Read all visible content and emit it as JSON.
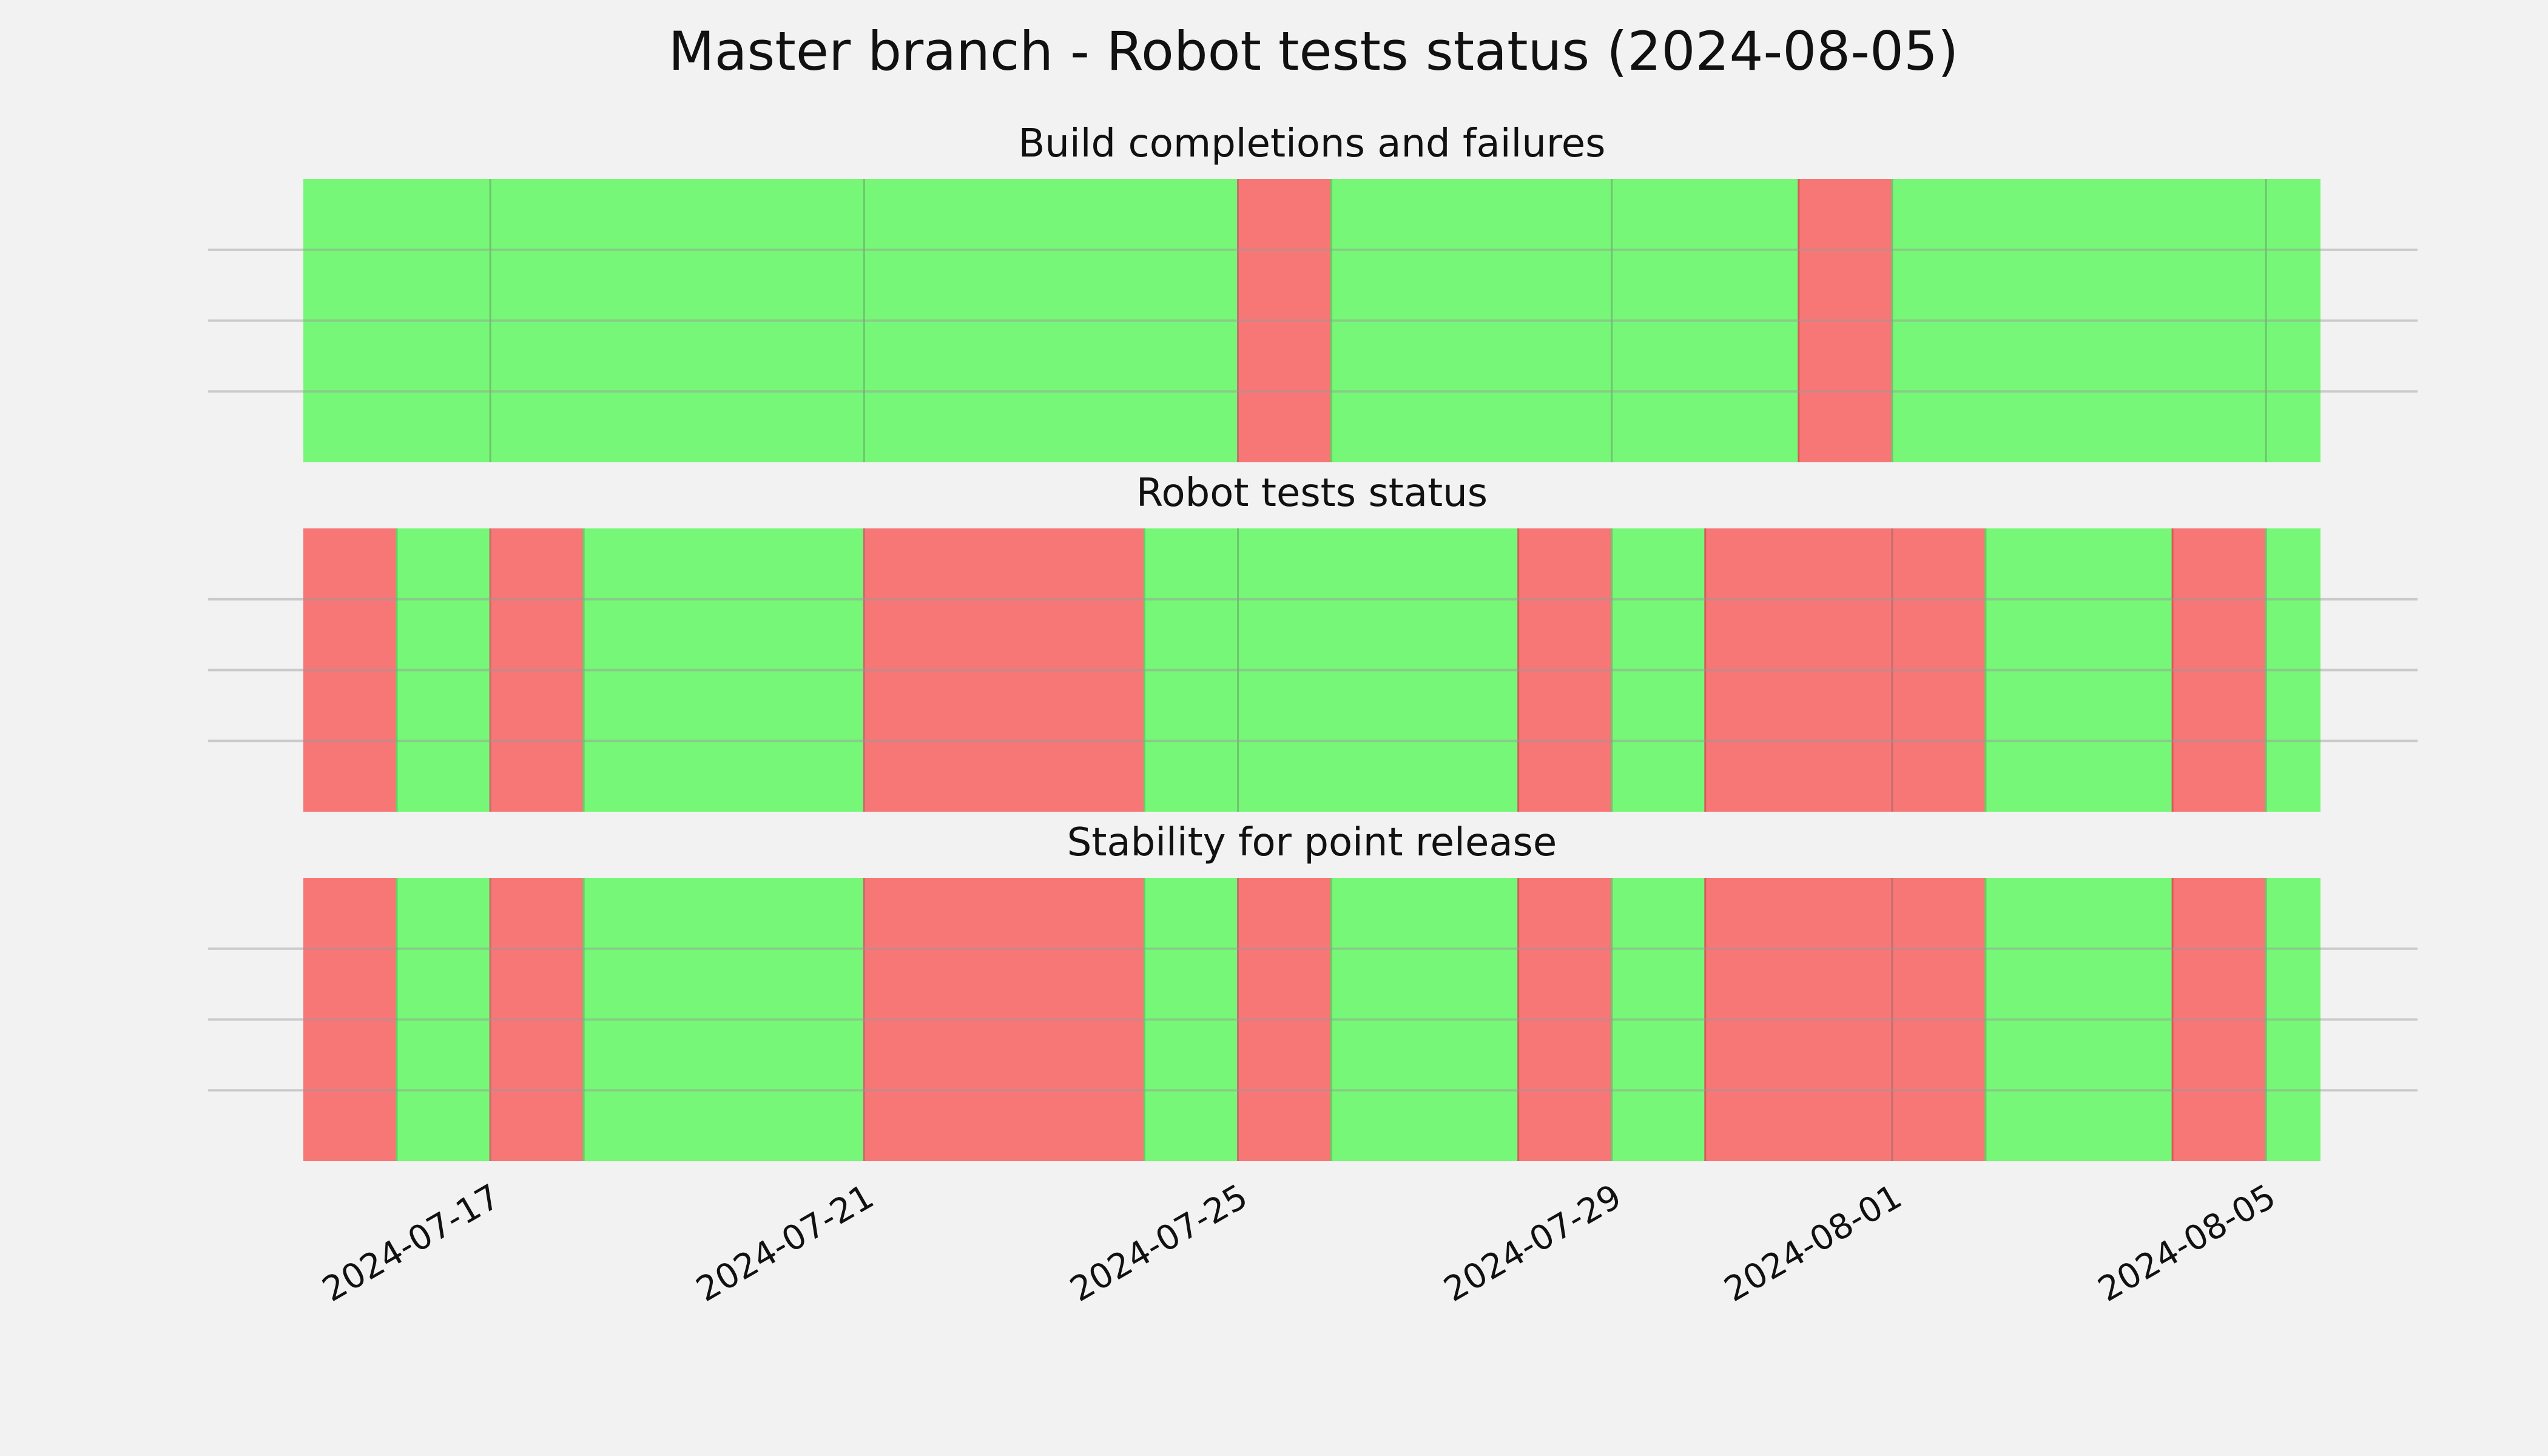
{
  "chart_data": {
    "type": "timeline",
    "title": "Master branch - Robot tests status (2024-08-05)",
    "x_range": [
      "2024-07-15T00:00",
      "2024-08-06T12:00"
    ],
    "x_ticks": [
      "2024-07-17",
      "2024-07-21",
      "2024-07-25",
      "2024-07-29",
      "2024-08-01",
      "2024-08-05"
    ],
    "colors": {
      "pass": "#77f777",
      "fail": "#f77777",
      "background": "#f2f2f2",
      "grid": "#c9c9c9"
    },
    "panels": [
      {
        "title": "Build completions and failures",
        "segments": [
          {
            "start": "2024-07-15T00:00",
            "end": "2024-07-17T00:00",
            "status": "pass"
          },
          {
            "start": "2024-07-17T00:00",
            "end": "2024-07-21T00:00",
            "status": "pass"
          },
          {
            "start": "2024-07-21T00:00",
            "end": "2024-07-25T00:00",
            "status": "pass"
          },
          {
            "start": "2024-07-25T00:00",
            "end": "2024-07-26T00:00",
            "status": "fail"
          },
          {
            "start": "2024-07-26T00:00",
            "end": "2024-07-29T00:00",
            "status": "pass"
          },
          {
            "start": "2024-07-29T00:00",
            "end": "2024-07-31T00:00",
            "status": "pass"
          },
          {
            "start": "2024-07-31T00:00",
            "end": "2024-08-01T00:00",
            "status": "fail"
          },
          {
            "start": "2024-08-01T00:00",
            "end": "2024-08-05T00:00",
            "status": "pass"
          },
          {
            "start": "2024-08-05T00:00",
            "end": "2024-08-05T14:00",
            "status": "pass"
          }
        ]
      },
      {
        "title": "Robot tests status",
        "segments": [
          {
            "start": "2024-07-15T00:00",
            "end": "2024-07-16T00:00",
            "status": "fail"
          },
          {
            "start": "2024-07-16T00:00",
            "end": "2024-07-17T00:00",
            "status": "pass"
          },
          {
            "start": "2024-07-17T00:00",
            "end": "2024-07-18T00:00",
            "status": "fail"
          },
          {
            "start": "2024-07-18T00:00",
            "end": "2024-07-21T00:00",
            "status": "pass"
          },
          {
            "start": "2024-07-21T00:00",
            "end": "2024-07-24T00:00",
            "status": "fail"
          },
          {
            "start": "2024-07-24T00:00",
            "end": "2024-07-25T00:00",
            "status": "pass"
          },
          {
            "start": "2024-07-25T00:00",
            "end": "2024-07-28T00:00",
            "status": "pass"
          },
          {
            "start": "2024-07-28T00:00",
            "end": "2024-07-29T00:00",
            "status": "fail"
          },
          {
            "start": "2024-07-29T00:00",
            "end": "2024-07-30T00:00",
            "status": "pass"
          },
          {
            "start": "2024-07-30T00:00",
            "end": "2024-08-01T00:00",
            "status": "fail"
          },
          {
            "start": "2024-08-01T00:00",
            "end": "2024-08-02T00:00",
            "status": "fail"
          },
          {
            "start": "2024-08-02T00:00",
            "end": "2024-08-04T00:00",
            "status": "pass"
          },
          {
            "start": "2024-08-04T00:00",
            "end": "2024-08-05T00:00",
            "status": "fail"
          },
          {
            "start": "2024-08-05T00:00",
            "end": "2024-08-05T14:00",
            "status": "pass"
          }
        ]
      },
      {
        "title": "Stability for point release",
        "segments": [
          {
            "start": "2024-07-15T00:00",
            "end": "2024-07-16T00:00",
            "status": "fail"
          },
          {
            "start": "2024-07-16T00:00",
            "end": "2024-07-17T00:00",
            "status": "pass"
          },
          {
            "start": "2024-07-17T00:00",
            "end": "2024-07-18T00:00",
            "status": "fail"
          },
          {
            "start": "2024-07-18T00:00",
            "end": "2024-07-21T00:00",
            "status": "pass"
          },
          {
            "start": "2024-07-21T00:00",
            "end": "2024-07-24T00:00",
            "status": "fail"
          },
          {
            "start": "2024-07-24T00:00",
            "end": "2024-07-25T00:00",
            "status": "pass"
          },
          {
            "start": "2024-07-25T00:00",
            "end": "2024-07-26T00:00",
            "status": "fail"
          },
          {
            "start": "2024-07-26T00:00",
            "end": "2024-07-28T00:00",
            "status": "pass"
          },
          {
            "start": "2024-07-28T00:00",
            "end": "2024-07-29T00:00",
            "status": "fail"
          },
          {
            "start": "2024-07-29T00:00",
            "end": "2024-07-30T00:00",
            "status": "pass"
          },
          {
            "start": "2024-07-30T00:00",
            "end": "2024-08-01T00:00",
            "status": "fail"
          },
          {
            "start": "2024-08-01T00:00",
            "end": "2024-08-02T00:00",
            "status": "fail"
          },
          {
            "start": "2024-08-02T00:00",
            "end": "2024-08-04T00:00",
            "status": "pass"
          },
          {
            "start": "2024-08-04T00:00",
            "end": "2024-08-05T00:00",
            "status": "fail"
          },
          {
            "start": "2024-08-05T00:00",
            "end": "2024-08-05T14:00",
            "status": "pass"
          }
        ]
      }
    ]
  }
}
